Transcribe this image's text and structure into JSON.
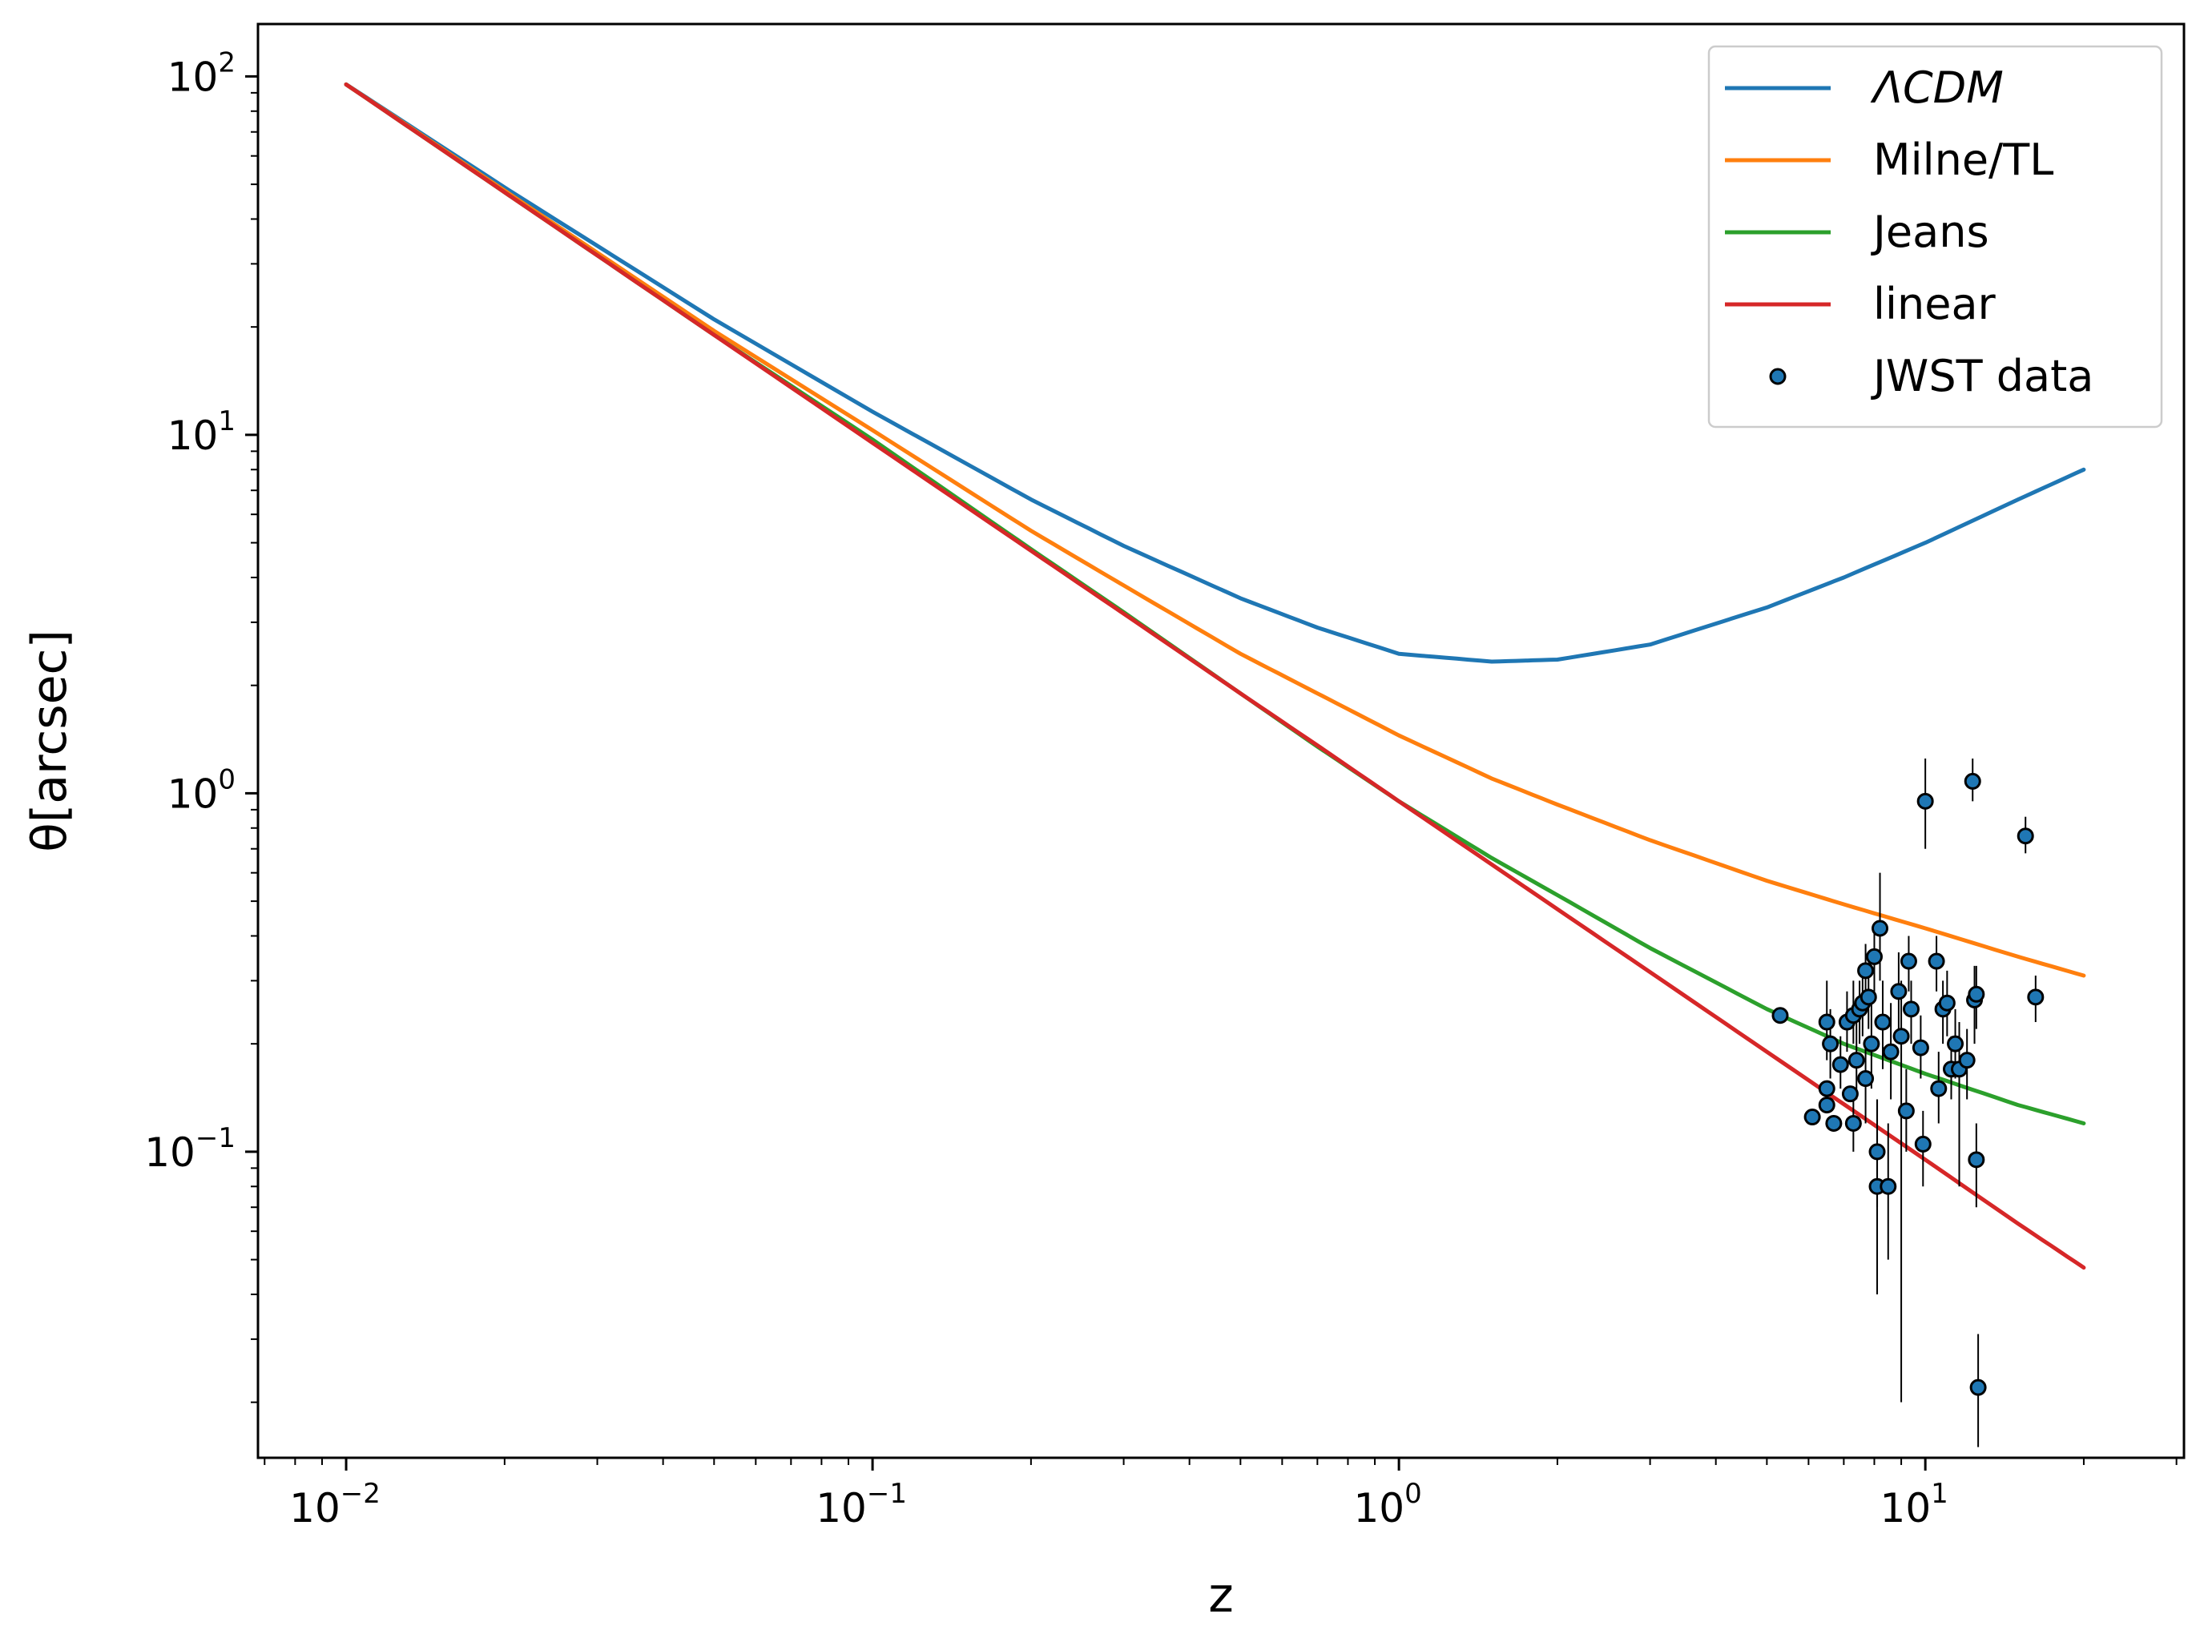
{
  "chart_data": {
    "type": "line",
    "xlabel": "z",
    "ylabel": "θ[arcsec]",
    "xscale": "log",
    "yscale": "log",
    "xlim": [
      0.0068,
      31
    ],
    "ylim": [
      0.014,
      140
    ],
    "xticks": [
      {
        "value": 0.01,
        "base": "10",
        "exp": "−2"
      },
      {
        "value": 0.1,
        "base": "10",
        "exp": "−1"
      },
      {
        "value": 1,
        "base": "10",
        "exp": "0"
      },
      {
        "value": 10,
        "base": "10",
        "exp": "1"
      }
    ],
    "yticks": [
      {
        "value": 0.1,
        "base": "10",
        "exp": "−1"
      },
      {
        "value": 1,
        "base": "10",
        "exp": "0"
      },
      {
        "value": 10,
        "base": "10",
        "exp": "1"
      },
      {
        "value": 100,
        "base": "10",
        "exp": "2"
      }
    ],
    "grid": false,
    "legend_position": "top-right",
    "series": [
      {
        "name": "ΛCDM",
        "italic": true,
        "color": "#1f77b4",
        "x": [
          0.01,
          0.02,
          0.05,
          0.1,
          0.2,
          0.3,
          0.5,
          0.7,
          1.0,
          1.5,
          2.0,
          3.0,
          5.0,
          7.0,
          10.0,
          15.0,
          20.0
        ],
        "y": [
          95,
          49,
          21,
          11.6,
          6.6,
          4.9,
          3.5,
          2.9,
          2.45,
          2.33,
          2.36,
          2.6,
          3.3,
          4.0,
          5.0,
          6.6,
          8.0
        ]
      },
      {
        "name": "Milne/TL",
        "italic": false,
        "color": "#ff7f0e",
        "x": [
          0.01,
          0.02,
          0.05,
          0.1,
          0.2,
          0.3,
          0.5,
          0.7,
          1.0,
          1.5,
          2.0,
          3.0,
          5.0,
          7.0,
          10.0,
          15.0,
          20.0
        ],
        "y": [
          95,
          48,
          19.5,
          10.3,
          5.4,
          3.8,
          2.45,
          1.9,
          1.45,
          1.1,
          0.93,
          0.74,
          0.57,
          0.49,
          0.42,
          0.35,
          0.31
        ]
      },
      {
        "name": "Jeans",
        "italic": false,
        "color": "#2ca02c",
        "x": [
          0.01,
          0.02,
          0.05,
          0.1,
          0.2,
          0.3,
          0.5,
          0.7,
          1.0,
          1.5,
          2.0,
          3.0,
          5.0,
          7.0,
          10.0,
          15.0,
          20.0
        ],
        "y": [
          95,
          47.5,
          19,
          9.7,
          4.8,
          3.2,
          1.9,
          1.35,
          0.95,
          0.66,
          0.52,
          0.37,
          0.25,
          0.2,
          0.165,
          0.135,
          0.12
        ]
      },
      {
        "name": "linear",
        "italic": false,
        "color": "#d62728",
        "x": [
          0.01,
          0.02,
          0.05,
          0.1,
          0.2,
          0.3,
          0.5,
          0.7,
          1.0,
          2.0,
          3.0,
          5.0,
          10.0,
          15.0,
          20.0
        ],
        "y": [
          95,
          47.5,
          19,
          9.5,
          4.75,
          3.17,
          1.9,
          1.36,
          0.95,
          0.475,
          0.317,
          0.19,
          0.095,
          0.063,
          0.0475
        ]
      }
    ],
    "scatter": {
      "name": "JWST data",
      "color": "#1f77b4",
      "edgecolor": "#000000",
      "points": [
        {
          "x": 5.3,
          "y": 0.24
        },
        {
          "x": 6.1,
          "y": 0.125
        },
        {
          "x": 6.5,
          "y": 0.23,
          "ylo": 0.18,
          "yhi": 0.3
        },
        {
          "x": 6.5,
          "y": 0.15
        },
        {
          "x": 6.5,
          "y": 0.135
        },
        {
          "x": 6.6,
          "y": 0.2,
          "ylo": 0.16,
          "yhi": 0.25
        },
        {
          "x": 6.7,
          "y": 0.12
        },
        {
          "x": 6.9,
          "y": 0.175,
          "ylo": 0.15,
          "yhi": 0.21
        },
        {
          "x": 7.1,
          "y": 0.23,
          "ylo": 0.19,
          "yhi": 0.28
        },
        {
          "x": 7.2,
          "y": 0.145
        },
        {
          "x": 7.3,
          "y": 0.12,
          "ylo": 0.1,
          "yhi": 0.15
        },
        {
          "x": 7.3,
          "y": 0.24,
          "ylo": 0.2,
          "yhi": 0.3
        },
        {
          "x": 7.4,
          "y": 0.18,
          "ylo": 0.14,
          "yhi": 0.23
        },
        {
          "x": 7.5,
          "y": 0.25,
          "ylo": 0.2,
          "yhi": 0.3
        },
        {
          "x": 7.6,
          "y": 0.26,
          "ylo": 0.21,
          "yhi": 0.33
        },
        {
          "x": 7.7,
          "y": 0.16,
          "ylo": 0.12,
          "yhi": 0.2
        },
        {
          "x": 7.7,
          "y": 0.32,
          "ylo": 0.26,
          "yhi": 0.38
        },
        {
          "x": 7.8,
          "y": 0.27,
          "ylo": 0.22,
          "yhi": 0.33
        },
        {
          "x": 7.9,
          "y": 0.2,
          "ylo": 0.15,
          "yhi": 0.26
        },
        {
          "x": 8.0,
          "y": 0.35,
          "ylo": 0.28,
          "yhi": 0.42
        },
        {
          "x": 8.1,
          "y": 0.1,
          "ylo": 0.07,
          "yhi": 0.14
        },
        {
          "x": 8.1,
          "y": 0.08,
          "ylo": 0.04,
          "yhi": 0.14
        },
        {
          "x": 8.2,
          "y": 0.42,
          "ylo": 0.3,
          "yhi": 0.6
        },
        {
          "x": 8.3,
          "y": 0.23,
          "ylo": 0.17,
          "yhi": 0.3
        },
        {
          "x": 8.5,
          "y": 0.08,
          "ylo": 0.05,
          "yhi": 0.12
        },
        {
          "x": 8.6,
          "y": 0.19,
          "ylo": 0.14,
          "yhi": 0.26
        },
        {
          "x": 8.9,
          "y": 0.28,
          "ylo": 0.22,
          "yhi": 0.36
        },
        {
          "x": 9.0,
          "y": 0.21,
          "ylo": 0.02,
          "yhi": 0.3
        },
        {
          "x": 9.2,
          "y": 0.13,
          "ylo": 0.1,
          "yhi": 0.17
        },
        {
          "x": 9.3,
          "y": 0.34,
          "ylo": 0.28,
          "yhi": 0.4
        },
        {
          "x": 9.4,
          "y": 0.25,
          "ylo": 0.2,
          "yhi": 0.3
        },
        {
          "x": 9.8,
          "y": 0.195,
          "ylo": 0.16,
          "yhi": 0.24
        },
        {
          "x": 9.9,
          "y": 0.105,
          "ylo": 0.08,
          "yhi": 0.13
        },
        {
          "x": 10.0,
          "y": 0.95,
          "ylo": 0.7,
          "yhi": 1.25
        },
        {
          "x": 10.5,
          "y": 0.34,
          "ylo": 0.28,
          "yhi": 0.4
        },
        {
          "x": 10.6,
          "y": 0.15,
          "ylo": 0.12,
          "yhi": 0.19
        },
        {
          "x": 10.8,
          "y": 0.25,
          "ylo": 0.2,
          "yhi": 0.3
        },
        {
          "x": 11.0,
          "y": 0.26,
          "ylo": 0.21,
          "yhi": 0.32
        },
        {
          "x": 11.2,
          "y": 0.17,
          "ylo": 0.14,
          "yhi": 0.21
        },
        {
          "x": 11.4,
          "y": 0.2,
          "ylo": 0.16,
          "yhi": 0.25
        },
        {
          "x": 11.6,
          "y": 0.17,
          "ylo": 0.08,
          "yhi": 0.23
        },
        {
          "x": 12.0,
          "y": 0.18,
          "ylo": 0.14,
          "yhi": 0.22
        },
        {
          "x": 12.3,
          "y": 1.08,
          "ylo": 0.95,
          "yhi": 1.25
        },
        {
          "x": 12.4,
          "y": 0.265,
          "ylo": 0.2,
          "yhi": 0.33
        },
        {
          "x": 12.5,
          "y": 0.275,
          "ylo": 0.22,
          "yhi": 0.33
        },
        {
          "x": 12.5,
          "y": 0.095,
          "ylo": 0.07,
          "yhi": 0.12
        },
        {
          "x": 12.6,
          "y": 0.022,
          "ylo": 0.015,
          "yhi": 0.031
        },
        {
          "x": 15.5,
          "y": 0.76,
          "ylo": 0.68,
          "yhi": 0.86
        },
        {
          "x": 16.2,
          "y": 0.27,
          "ylo": 0.23,
          "yhi": 0.31
        }
      ]
    }
  }
}
